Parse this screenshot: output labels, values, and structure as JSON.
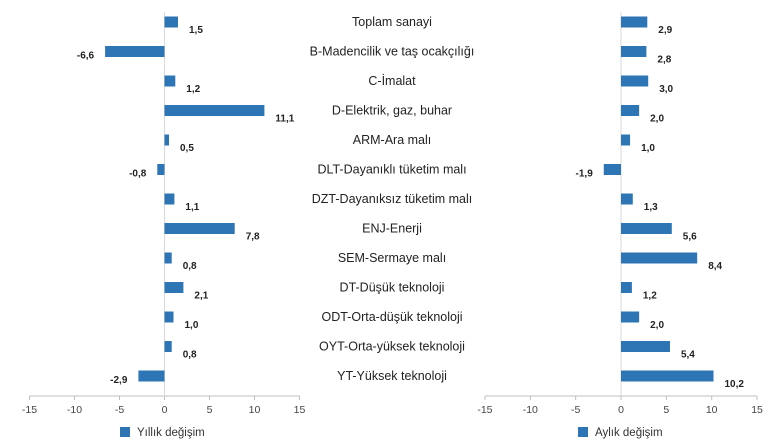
{
  "chart_data": [
    {
      "type": "bar",
      "orientation": "horizontal",
      "categories": [
        "Toplam sanayi",
        "B-Madencilik ve taş ocakçılığı",
        "C-İmalat",
        "D-Elektrik, gaz, buhar",
        "ARM-Ara malı",
        "DLT-Dayanıklı tüketim malı",
        "DZT-Dayanıksız tüketim malı",
        "ENJ-Enerji",
        "SEM-Sermaye malı",
        "DT-Düşük teknoloji",
        "ODT-Orta-düşük teknoloji",
        "OYT-Orta-yüksek teknoloji",
        "YT-Yüksek teknoloji"
      ],
      "series": [
        {
          "name": "Yıllık değişim",
          "values": [
            1.5,
            -6.6,
            1.2,
            11.1,
            0.5,
            -0.8,
            1.1,
            7.8,
            0.8,
            2.1,
            1.0,
            0.8,
            -2.9
          ],
          "labels": [
            "1,5",
            "-6,6",
            "1,2",
            "11,1",
            "0,5",
            "-0,8",
            "1,1",
            "7,8",
            "0,8",
            "2,1",
            "1,0",
            "0,8",
            "-2,9"
          ]
        }
      ],
      "xlim": [
        -15,
        15
      ],
      "xticks": [
        "-15",
        "-10",
        "-5",
        "0",
        "5",
        "10",
        "15"
      ],
      "color": "#2E75B6",
      "grid": false,
      "legend": "bottom-left"
    },
    {
      "type": "bar",
      "orientation": "horizontal",
      "categories": [
        "Toplam sanayi",
        "B-Madencilik ve taş ocakçılığı",
        "C-İmalat",
        "D-Elektrik, gaz, buhar",
        "ARM-Ara malı",
        "DLT-Dayanıklı tüketim malı",
        "DZT-Dayanıksız tüketim malı",
        "ENJ-Enerji",
        "SEM-Sermaye malı",
        "DT-Düşük teknoloji",
        "ODT-Orta-düşük teknoloji",
        "OYT-Orta-yüksek teknoloji",
        "YT-Yüksek teknoloji"
      ],
      "series": [
        {
          "name": "Aylık değişim",
          "values": [
            2.9,
            2.8,
            3.0,
            2.0,
            1.0,
            -1.9,
            1.3,
            5.6,
            8.4,
            1.2,
            2.0,
            5.4,
            10.2
          ],
          "labels": [
            "2,9",
            "2,8",
            "3,0",
            "2,0",
            "1,0",
            "-1,9",
            "1,3",
            "5,6",
            "8,4",
            "1,2",
            "2,0",
            "5,4",
            "10,2"
          ]
        }
      ],
      "xlim": [
        -15,
        15
      ],
      "xticks": [
        "-15",
        "-10",
        "-5",
        "0",
        "5",
        "10",
        "15"
      ],
      "color": "#2E75B6",
      "grid": false,
      "legend": "bottom-left"
    }
  ]
}
